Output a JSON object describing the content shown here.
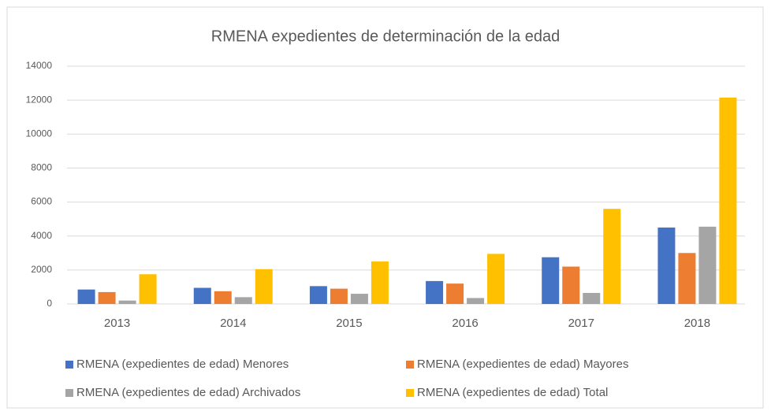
{
  "chart_data": {
    "type": "bar",
    "title": "RMENA expedientes de determinación de la edad",
    "categories": [
      "2013",
      "2014",
      "2015",
      "2016",
      "2017",
      "2018"
    ],
    "series": [
      {
        "name": "RMENA (expedientes de edad) Menores",
        "color": "#4472c4",
        "values": [
          850,
          950,
          1050,
          1350,
          2750,
          4500
        ]
      },
      {
        "name": "RMENA (expedientes de edad) Mayores",
        "color": "#ed7d31",
        "values": [
          700,
          750,
          900,
          1200,
          2200,
          3000
        ]
      },
      {
        "name": "RMENA (expedientes de edad) Archivados",
        "color": "#a5a5a5",
        "values": [
          200,
          400,
          600,
          350,
          650,
          4550
        ]
      },
      {
        "name": "RMENA (expedientes de edad) Total",
        "color": "#ffc000",
        "values": [
          1750,
          2050,
          2500,
          2950,
          5600,
          12150
        ]
      }
    ],
    "ylim": [
      0,
      14000
    ],
    "yticks": [
      0,
      2000,
      4000,
      6000,
      8000,
      10000,
      12000,
      14000
    ],
    "grid": true,
    "legend": "bottom"
  }
}
